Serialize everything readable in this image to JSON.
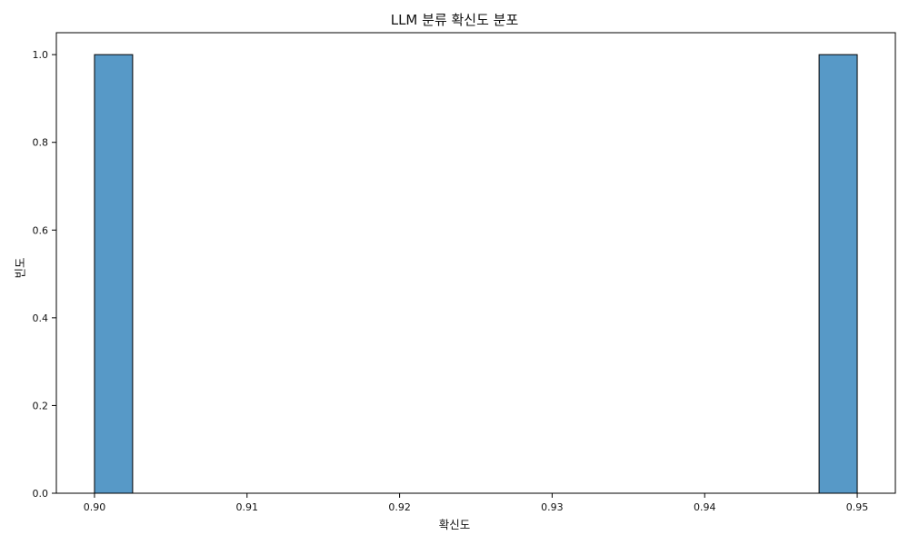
{
  "chart_data": {
    "type": "bar",
    "title": "LLM 분류 확신도 분포",
    "xlabel": "확신도",
    "ylabel": "빈도",
    "bin_width": 0.0025,
    "bins": [
      {
        "x_start": 0.9,
        "x_end": 0.9025,
        "count": 1
      },
      {
        "x_start": 0.9475,
        "x_end": 0.95,
        "count": 1
      }
    ],
    "xlim": [
      0.8975,
      0.9525
    ],
    "ylim": [
      0,
      1.05
    ],
    "x_ticks": [
      0.9,
      0.91,
      0.92,
      0.93,
      0.94,
      0.95
    ],
    "x_tick_labels": [
      "0.90",
      "0.91",
      "0.92",
      "0.93",
      "0.94",
      "0.95"
    ],
    "y_ticks": [
      0.0,
      0.2,
      0.4,
      0.6,
      0.8,
      1.0
    ],
    "y_tick_labels": [
      "0.0",
      "0.2",
      "0.4",
      "0.6",
      "0.8",
      "1.0"
    ],
    "grid": false,
    "bar_color": "#5799c7",
    "bar_edge_color": "#000000"
  }
}
